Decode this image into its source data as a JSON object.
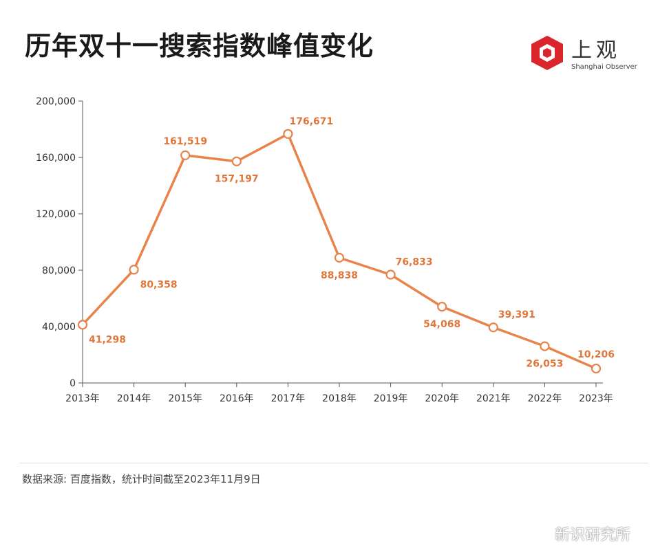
{
  "header": {
    "title": "历年双十一搜索指数峰值变化"
  },
  "logo": {
    "cn": "上观",
    "en": "Shanghai Observer",
    "brand_color": "#d9252b"
  },
  "footer": {
    "source": "数据来源: 百度指数，统计时间截至2023年11月9日"
  },
  "watermark": {
    "text": "新识研究所"
  },
  "chart_data": {
    "type": "line",
    "categories": [
      "2013年",
      "2014年",
      "2015年",
      "2016年",
      "2017年",
      "2018年",
      "2019年",
      "2020年",
      "2021年",
      "2022年",
      "2023年"
    ],
    "series": [
      {
        "values": [
          41298,
          80358,
          161519,
          157197,
          176671,
          88838,
          76833,
          54068,
          39391,
          26053,
          10206
        ],
        "labels": [
          "41,298",
          "80,358",
          "161,519",
          "157,197",
          "176,671",
          "88,838",
          "76,833",
          "54,068",
          "39,391",
          "26,053",
          "10,206"
        ],
        "color": "#e8834a"
      }
    ],
    "y_ticks": [
      0,
      40000,
      80000,
      120000,
      160000,
      200000
    ],
    "y_tick_labels": [
      "0",
      "40,000",
      "80,000",
      "120,000",
      "160,000",
      "200,000"
    ],
    "ylim": [
      0,
      200000
    ],
    "grid": false,
    "label_color": "#e0763a"
  }
}
